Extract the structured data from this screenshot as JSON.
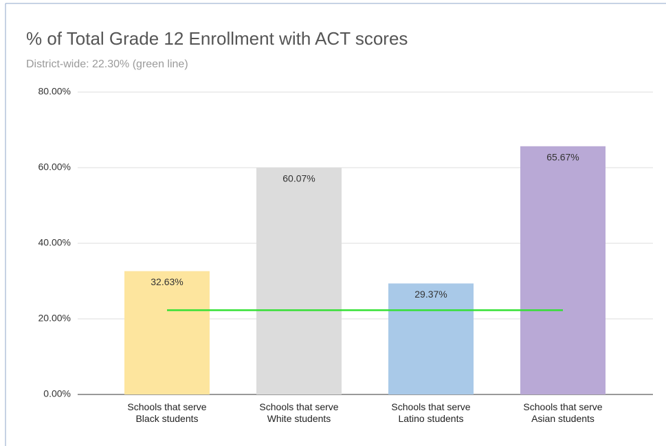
{
  "chart_data": {
    "type": "bar",
    "title": "% of Total Grade 12 Enrollment with ACT scores",
    "subtitle": "District-wide: 22.30% (green line)",
    "categories": [
      [
        "Schools that serve",
        "Black students"
      ],
      [
        "Schools that serve",
        "White students"
      ],
      [
        "Schools that serve",
        "Latino students"
      ],
      [
        "Schools that serve",
        "Asian students"
      ]
    ],
    "values": [
      32.63,
      60.07,
      29.37,
      65.67
    ],
    "value_labels": [
      "32.63%",
      "60.07%",
      "29.37%",
      "65.67%"
    ],
    "colors": [
      "#fde59e",
      "#dcdcdc",
      "#a9c9e8",
      "#b9a9d6"
    ],
    "reference_line": {
      "value": 22.3,
      "color": "#33e033"
    },
    "ylim": [
      0,
      80
    ],
    "yticks": [
      {
        "value": 0,
        "label": "0.00%"
      },
      {
        "value": 20,
        "label": "20.00%"
      },
      {
        "value": 40,
        "label": "40.00%"
      },
      {
        "value": 60,
        "label": "60.00%"
      },
      {
        "value": 80,
        "label": "80.00%"
      }
    ],
    "grid": true
  }
}
